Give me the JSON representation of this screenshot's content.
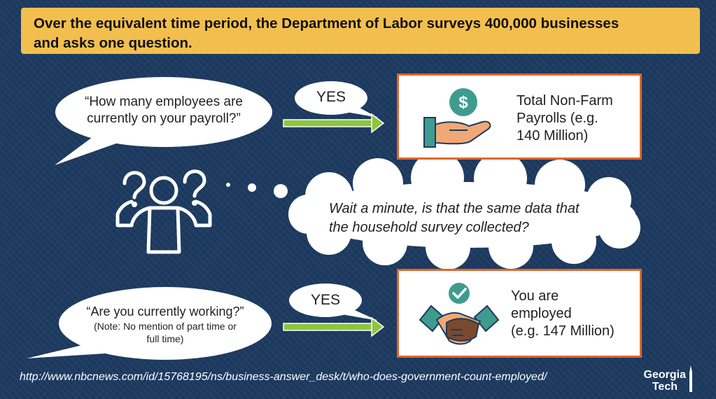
{
  "header": {
    "line1": "Over the equivalent time period, the Department of Labor surveys 400,000 businesses",
    "line2": "and asks one question."
  },
  "question1": {
    "line1": "“How many employees are",
    "line2": "currently on your payroll?”",
    "answer": "YES"
  },
  "result1": {
    "icon": "hand-dollar-icon",
    "line1": "Total Non-Farm",
    "line2": "Payrolls (e.g.",
    "line3": "140 Million)"
  },
  "thought": {
    "line1": "Wait a minute, is that the same data that",
    "line2": "the household survey collected?"
  },
  "question2": {
    "line1": "“Are you currently working?”",
    "note1": "(Note: No mention of part time or",
    "note2": "full time)",
    "answer": "YES"
  },
  "result2": {
    "icon": "handshake-check-icon",
    "line1": "You are",
    "line2": "employed",
    "line3": "(e.g. 147 Million)"
  },
  "footer": {
    "url": "http://www.nbcnews.com/id/15768195/ns/business-answer_desk/t/who-does-government-count-employed/",
    "logo_line1": "Georgia",
    "logo_line2": "Tech"
  },
  "colors": {
    "background": "#1d3a60",
    "banner": "#f2bf4f",
    "box_border": "#e0662c",
    "arrow": "#8cc63f",
    "icon_teal": "#3e9c8f",
    "icon_skin": "#f0a875"
  }
}
